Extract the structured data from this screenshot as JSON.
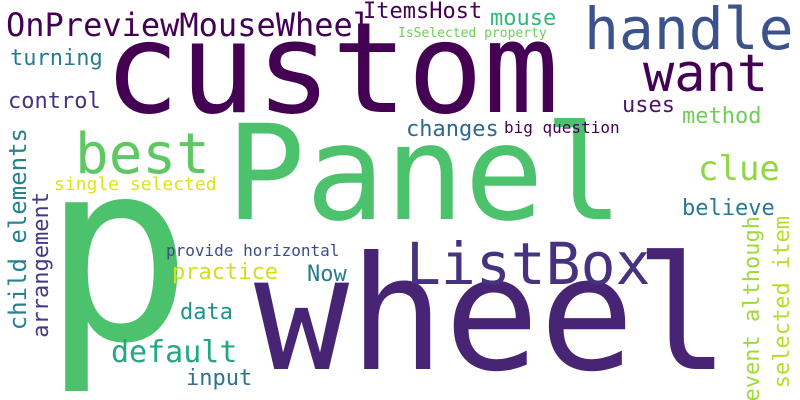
{
  "words": [
    {
      "text": "p",
      "color": "#4cc26c"
    },
    {
      "text": "Panel",
      "color": "#4cc26c"
    },
    {
      "text": "wheel",
      "color": "#482475"
    },
    {
      "text": "custom",
      "color": "#440154"
    },
    {
      "text": "handle",
      "color": "#3b528b"
    },
    {
      "text": "want",
      "color": "#440154"
    },
    {
      "text": "ListBox",
      "color": "#46327e"
    },
    {
      "text": "best",
      "color": "#5ec962"
    },
    {
      "text": "OnPreviewMouseWheel",
      "color": "#440154"
    },
    {
      "text": "ItemsHost",
      "color": "#440154"
    },
    {
      "text": "mouse",
      "color": "#35b779"
    },
    {
      "text": "IsSelected property",
      "color": "#6ece58"
    },
    {
      "text": "turning",
      "color": "#287c8e"
    },
    {
      "text": "control",
      "color": "#46327e"
    },
    {
      "text": "uses",
      "color": "#481668"
    },
    {
      "text": "method",
      "color": "#6ece58"
    },
    {
      "text": "changes",
      "color": "#31688e"
    },
    {
      "text": "big question",
      "color": "#440154"
    },
    {
      "text": "clue",
      "color": "#90d743"
    },
    {
      "text": "child elements",
      "color": "#26828e"
    },
    {
      "text": "arrangement",
      "color": "#443983"
    },
    {
      "text": "single selected",
      "color": "#dde318"
    },
    {
      "text": "believe",
      "color": "#2a788e"
    },
    {
      "text": "provide horizontal",
      "color": "#3e4a89"
    },
    {
      "text": "practice",
      "color": "#d0e11c"
    },
    {
      "text": "Now",
      "color": "#287c8e"
    },
    {
      "text": "data",
      "color": "#21918c"
    },
    {
      "text": "default",
      "color": "#22a884"
    },
    {
      "text": "input",
      "color": "#2c728e"
    },
    {
      "text": "event although",
      "color": "#a0da39"
    },
    {
      "text": "selected item",
      "color": "#b5de2b"
    }
  ]
}
